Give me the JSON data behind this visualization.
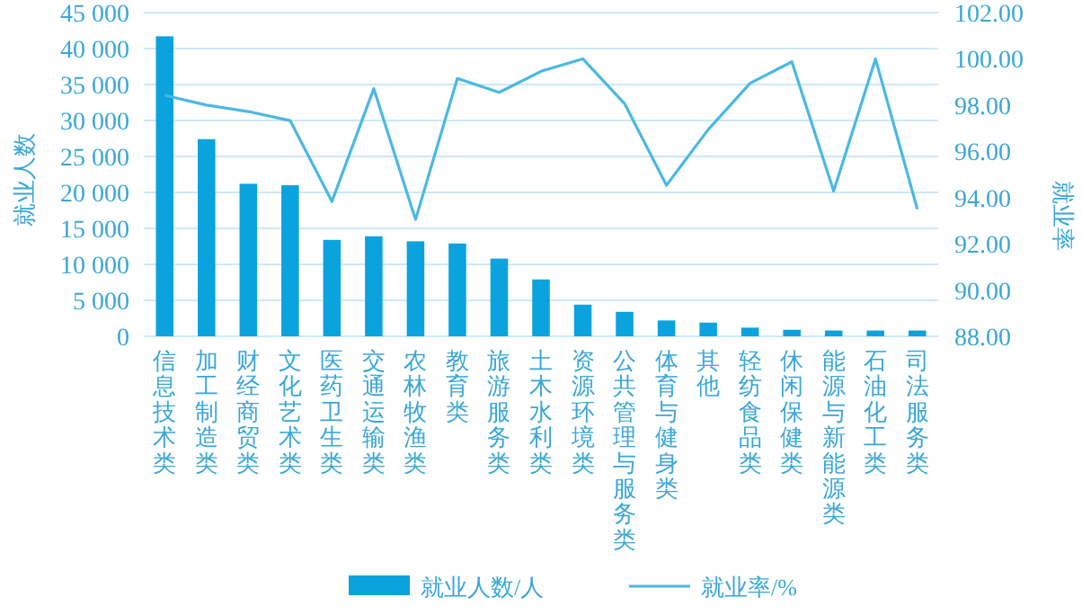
{
  "chart_data": {
    "type": "bar",
    "xlabel": null,
    "ylabel": "就业人数",
    "y2label": "就业率",
    "categories": [
      "信息技术类",
      "加工制造类",
      "财经商贸类",
      "文化艺术类",
      "医药卫生类",
      "交通运输类",
      "农林牧渔类",
      "教育类",
      "旅游服务类",
      "土木水利类",
      "资源环境类",
      "公共管理与服务类",
      "体育与健身类",
      "其他",
      "轻纺食品类",
      "休闲保健类",
      "能源与新能源类",
      "石油化工类",
      "司法服务类"
    ],
    "series": [
      {
        "name": "就业人数/人",
        "color": "#0aa3de",
        "values": [
          41700,
          27400,
          21200,
          21000,
          13400,
          13900,
          13200,
          12900,
          10800,
          7900,
          4400,
          3400,
          2200,
          1900,
          1200,
          900,
          800,
          800,
          800
        ]
      },
      {
        "name": "就业率/%",
        "type": "line",
        "axis": "y2",
        "color": "#4cb8e2",
        "values": [
          98.42,
          98.0,
          97.72,
          97.33,
          93.83,
          98.71,
          93.05,
          99.15,
          98.55,
          99.46,
          100.0,
          98.06,
          94.53,
          96.94,
          98.94,
          99.87,
          94.28,
          100.0,
          93.5
        ]
      }
    ],
    "ylim": [
      0,
      45000
    ],
    "yticks": [
      {
        "value": 0,
        "label": "0"
      },
      {
        "value": 5000,
        "label": "5 000"
      },
      {
        "value": 10000,
        "label": "10 000"
      },
      {
        "value": 15000,
        "label": "15 000"
      },
      {
        "value": 20000,
        "label": "20 000"
      },
      {
        "value": 25000,
        "label": "25 000"
      },
      {
        "value": 30000,
        "label": "30 000"
      },
      {
        "value": 35000,
        "label": "35 000"
      },
      {
        "value": 40000,
        "label": "40 000"
      },
      {
        "value": 45000,
        "label": "45 000"
      }
    ],
    "y2lim": [
      88,
      102
    ],
    "y2ticks": [
      {
        "value": 88,
        "label": "88.00"
      },
      {
        "value": 90,
        "label": "90.00"
      },
      {
        "value": 92,
        "label": "92.00"
      },
      {
        "value": 94,
        "label": "94.00"
      },
      {
        "value": 96,
        "label": "96.00"
      },
      {
        "value": 98,
        "label": "98.00"
      },
      {
        "value": 100,
        "label": "100.00"
      },
      {
        "value": 102,
        "label": "102.00"
      }
    ],
    "grid": "y",
    "legend": "bottom",
    "marker": "none",
    "line_style": "solid"
  }
}
